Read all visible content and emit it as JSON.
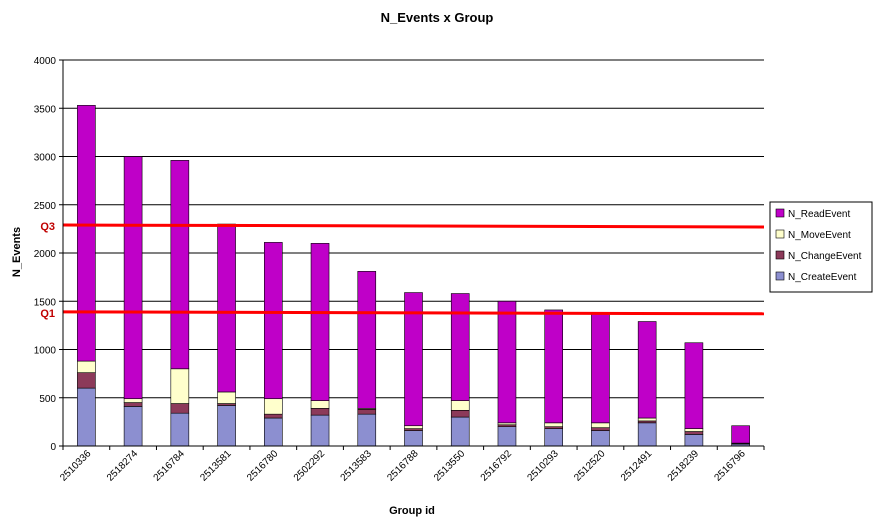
{
  "chart_data": {
    "type": "bar",
    "stacked": true,
    "title": "N_Events x Group",
    "xlabel": "Group id",
    "ylabel": "N_Events",
    "ylim": [
      0,
      4000
    ],
    "yticks": [
      0,
      500,
      1000,
      1500,
      2000,
      2500,
      3000,
      3500,
      4000
    ],
    "grid": true,
    "legend_position": "right",
    "categories": [
      "2510336",
      "2518274",
      "2516784",
      "2513581",
      "2516780",
      "2502292",
      "2513583",
      "2516788",
      "2513550",
      "2516792",
      "2510293",
      "2512520",
      "2512491",
      "2518239",
      "2516796"
    ],
    "series": [
      {
        "name": "N_CreateEvent",
        "color": "#8c8fd0",
        "values": [
          600,
          410,
          340,
          420,
          290,
          320,
          330,
          160,
          300,
          200,
          180,
          160,
          240,
          120,
          20
        ]
      },
      {
        "name": "N_ChangeEvent",
        "color": "#8c3a5a",
        "values": [
          160,
          40,
          100,
          20,
          40,
          70,
          50,
          20,
          70,
          20,
          20,
          30,
          20,
          30,
          5
        ]
      },
      {
        "name": "N_MoveEvent",
        "color": "#ffffcc",
        "values": [
          120,
          40,
          360,
          120,
          160,
          80,
          10,
          30,
          100,
          20,
          40,
          50,
          30,
          30,
          5
        ]
      },
      {
        "name": "N_ReadEvent",
        "color": "#bf00c8",
        "values": [
          2650,
          2510,
          2160,
          1740,
          1620,
          1630,
          1420,
          1380,
          1110,
          1260,
          1170,
          1130,
          1000,
          890,
          180
        ]
      }
    ],
    "reference_lines": [
      {
        "label": "Q3",
        "value_start": 2290,
        "value_end": 2270,
        "color": "#ff0000"
      },
      {
        "label": "Q1",
        "value_start": 1390,
        "value_end": 1370,
        "color": "#ff0000"
      }
    ],
    "legend_order": [
      "N_ReadEvent",
      "N_MoveEvent",
      "N_ChangeEvent",
      "N_CreateEvent"
    ]
  }
}
